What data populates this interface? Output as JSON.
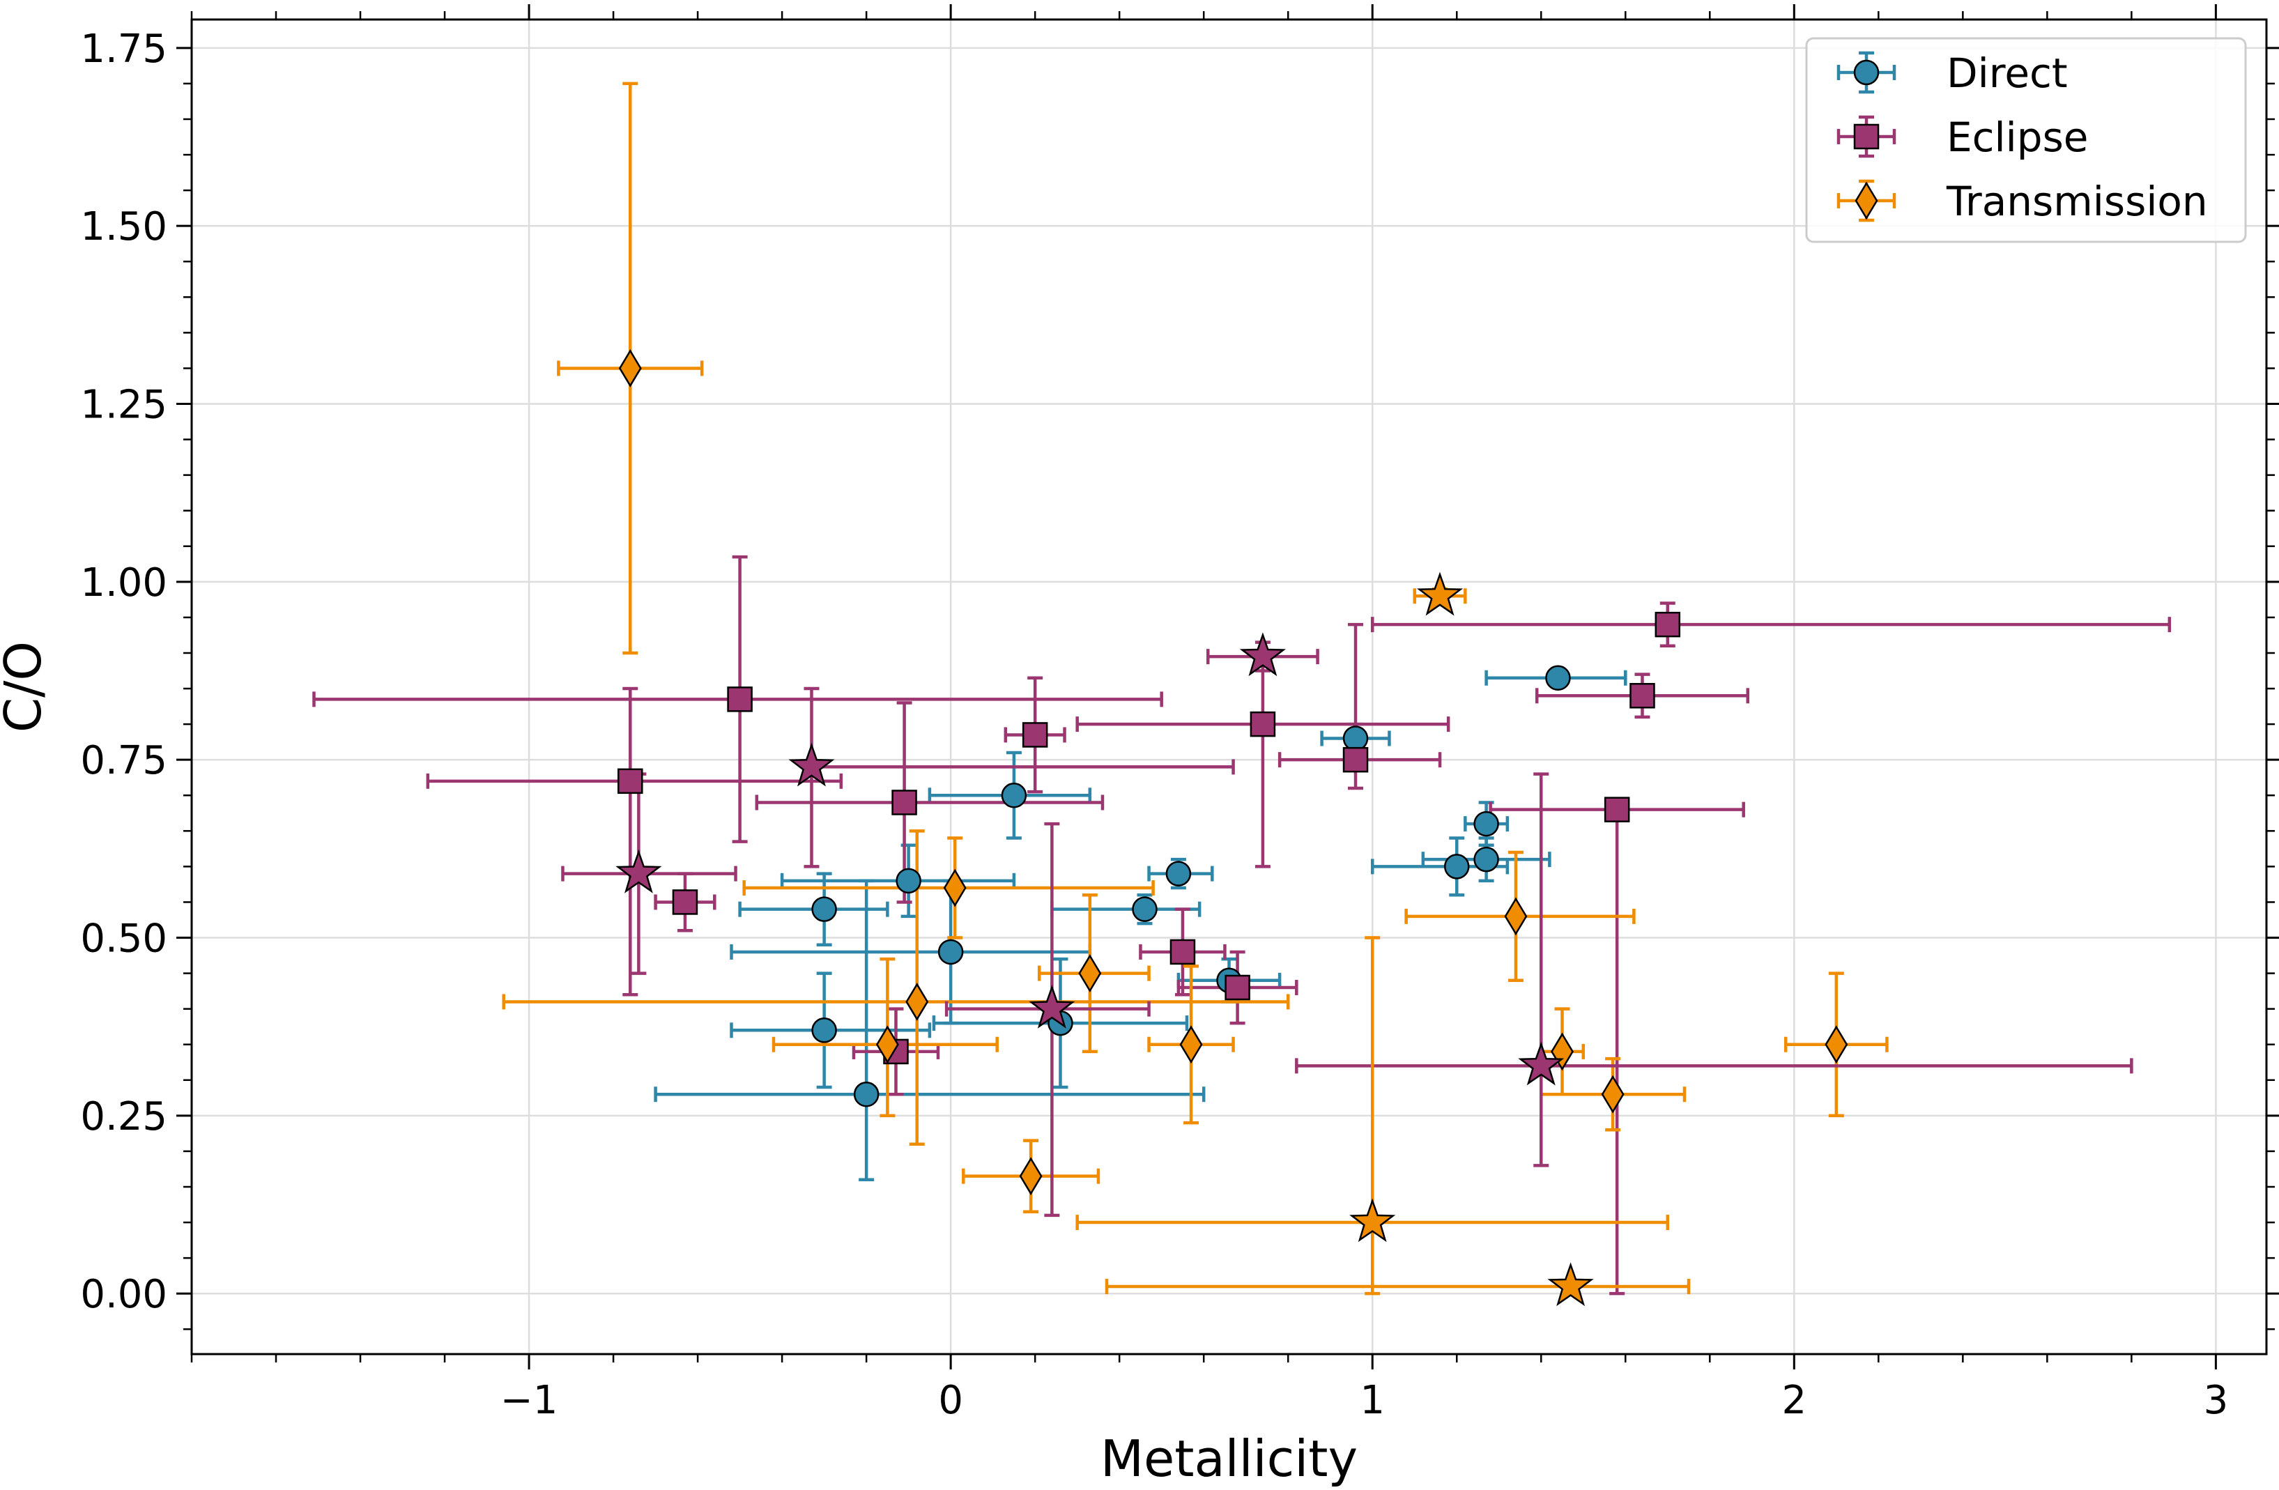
{
  "chart_data": {
    "type": "scatter",
    "title": "",
    "xlabel": "Metallicity",
    "ylabel": "C/O",
    "xlim": [
      -1.8,
      3.12
    ],
    "ylim": [
      -0.085,
      1.79
    ],
    "grid": true,
    "legend_position": "top-right",
    "xticks": [
      {
        "value": -1,
        "label": "−1"
      },
      {
        "value": 0,
        "label": "0"
      },
      {
        "value": 1,
        "label": "1"
      },
      {
        "value": 2,
        "label": "2"
      },
      {
        "value": 3,
        "label": "3"
      }
    ],
    "yticks": [
      {
        "value": 0.0,
        "label": "0.00"
      },
      {
        "value": 0.25,
        "label": "0.25"
      },
      {
        "value": 0.5,
        "label": "0.50"
      },
      {
        "value": 0.75,
        "label": "0.75"
      },
      {
        "value": 1.0,
        "label": "1.00"
      },
      {
        "value": 1.25,
        "label": "1.25"
      },
      {
        "value": 1.5,
        "label": "1.50"
      },
      {
        "value": 1.75,
        "label": "1.75"
      }
    ],
    "colors": {
      "direct": "#2e86a8",
      "eclipse": "#9b3670",
      "transmission": "#f08c00"
    },
    "series": [
      {
        "name": "Direct",
        "marker": "circle",
        "color_key": "direct",
        "points": [
          {
            "x": 0.15,
            "y": 0.7,
            "xerr": [
              0.2,
              0.18
            ],
            "yerr": [
              0.06,
              0.06
            ]
          },
          {
            "x": 0.54,
            "y": 0.59,
            "xerr": [
              0.07,
              0.08
            ],
            "yerr": [
              0.02,
              0.02
            ]
          },
          {
            "x": 0.46,
            "y": 0.54,
            "xerr": [
              0.22,
              0.13
            ],
            "yerr": [
              0.02,
              0.02
            ]
          },
          {
            "x": -0.1,
            "y": 0.58,
            "xerr": [
              0.3,
              0.25
            ],
            "yerr": [
              0.05,
              0.05
            ]
          },
          {
            "x": -0.3,
            "y": 0.54,
            "xerr": [
              0.2,
              0.15
            ],
            "yerr": [
              0.05,
              0.05
            ]
          },
          {
            "x": 0.0,
            "y": 0.48,
            "xerr": [
              0.52,
              0.33
            ],
            "yerr": [
              0.1,
              0.1
            ]
          },
          {
            "x": -0.3,
            "y": 0.37,
            "xerr": [
              0.22,
              0.25
            ],
            "yerr": [
              0.08,
              0.08
            ]
          },
          {
            "x": -0.2,
            "y": 0.28,
            "xerr": [
              0.5,
              0.8
            ],
            "yerr": [
              0.12,
              0.3
            ]
          },
          {
            "x": 0.26,
            "y": 0.38,
            "xerr": [
              0.3,
              0.3
            ],
            "yerr": [
              0.09,
              0.09
            ]
          },
          {
            "x": 0.66,
            "y": 0.44,
            "xerr": [
              0.12,
              0.12
            ],
            "yerr": [
              0.03,
              0.03
            ]
          },
          {
            "x": 0.96,
            "y": 0.78,
            "xerr": [
              0.08,
              0.08
            ],
            "yerr": [
              0.02,
              0.02
            ]
          },
          {
            "x": 1.44,
            "y": 0.865,
            "xerr": [
              0.17,
              0.16
            ],
            "yerr": [
              0.01,
              0.01
            ]
          },
          {
            "x": 1.27,
            "y": 0.66,
            "xerr": [
              0.05,
              0.05
            ],
            "yerr": [
              0.03,
              0.03
            ]
          },
          {
            "x": 1.2,
            "y": 0.6,
            "xerr": [
              0.2,
              0.12
            ],
            "yerr": [
              0.04,
              0.04
            ]
          },
          {
            "x": 1.27,
            "y": 0.61,
            "xerr": [
              0.15,
              0.15
            ],
            "yerr": [
              0.03,
              0.03
            ]
          }
        ]
      },
      {
        "name": "Eclipse",
        "marker": "square",
        "color_key": "eclipse",
        "points": [
          {
            "x": -0.5,
            "y": 0.835,
            "xerr": [
              1.01,
              1.0
            ],
            "yerr": [
              0.2,
              0.2
            ]
          },
          {
            "x": -0.76,
            "y": 0.72,
            "xerr": [
              0.48,
              0.5
            ],
            "yerr": [
              0.3,
              0.13
            ]
          },
          {
            "x": -0.63,
            "y": 0.55,
            "xerr": [
              0.07,
              0.07
            ],
            "yerr": [
              0.04,
              0.04
            ]
          },
          {
            "x": -0.11,
            "y": 0.69,
            "xerr": [
              0.35,
              0.47
            ],
            "yerr": [
              0.14,
              0.14
            ]
          },
          {
            "x": 0.2,
            "y": 0.785,
            "xerr": [
              0.07,
              0.07
            ],
            "yerr": [
              0.08,
              0.08
            ]
          },
          {
            "x": 0.74,
            "y": 0.8,
            "xerr": [
              0.44,
              0.44
            ],
            "yerr": [
              0.2,
              0.1
            ]
          },
          {
            "x": 0.96,
            "y": 0.75,
            "xerr": [
              0.18,
              0.2
            ],
            "yerr": [
              0.04,
              0.19
            ]
          },
          {
            "x": 1.7,
            "y": 0.94,
            "xerr": [
              0.7,
              1.19
            ],
            "yerr": [
              0.03,
              0.03
            ]
          },
          {
            "x": 1.64,
            "y": 0.84,
            "xerr": [
              0.25,
              0.25
            ],
            "yerr": [
              0.03,
              0.03
            ]
          },
          {
            "x": 1.58,
            "y": 0.68,
            "xerr": [
              0.3,
              0.3
            ],
            "yerr": [
              0.68,
              0.0
            ]
          },
          {
            "x": 0.55,
            "y": 0.48,
            "xerr": [
              0.1,
              0.1
            ],
            "yerr": [
              0.06,
              0.06
            ]
          },
          {
            "x": 0.68,
            "y": 0.43,
            "xerr": [
              0.14,
              0.14
            ],
            "yerr": [
              0.05,
              0.05
            ]
          },
          {
            "x": -0.13,
            "y": 0.34,
            "xerr": [
              0.1,
              0.1
            ],
            "yerr": [
              0.06,
              0.06
            ]
          }
        ]
      },
      {
        "name": "Transmission",
        "marker": "diamond",
        "color_key": "transmission",
        "points": [
          {
            "x": -0.76,
            "y": 1.3,
            "xerr": [
              0.17,
              0.17
            ],
            "yerr": [
              0.4,
              0.4
            ]
          },
          {
            "x": 0.01,
            "y": 0.57,
            "xerr": [
              0.5,
              0.47
            ],
            "yerr": [
              0.07,
              0.07
            ]
          },
          {
            "x": -0.08,
            "y": 0.41,
            "xerr": [
              0.98,
              0.88
            ],
            "yerr": [
              0.2,
              0.24
            ]
          },
          {
            "x": -0.15,
            "y": 0.35,
            "xerr": [
              0.27,
              0.26
            ],
            "yerr": [
              0.1,
              0.12
            ]
          },
          {
            "x": 0.33,
            "y": 0.45,
            "xerr": [
              0.12,
              0.14
            ],
            "yerr": [
              0.11,
              0.11
            ]
          },
          {
            "x": 0.57,
            "y": 0.35,
            "xerr": [
              0.1,
              0.1
            ],
            "yerr": [
              0.11,
              0.11
            ]
          },
          {
            "x": 0.19,
            "y": 0.165,
            "xerr": [
              0.16,
              0.16
            ],
            "yerr": [
              0.05,
              0.05
            ]
          },
          {
            "x": 1.34,
            "y": 0.53,
            "xerr": [
              0.26,
              0.28
            ],
            "yerr": [
              0.09,
              0.09
            ]
          },
          {
            "x": 1.45,
            "y": 0.34,
            "xerr": [
              0.05,
              0.05
            ],
            "yerr": [
              0.06,
              0.06
            ]
          },
          {
            "x": 1.57,
            "y": 0.28,
            "xerr": [
              0.17,
              0.17
            ],
            "yerr": [
              0.05,
              0.05
            ]
          },
          {
            "x": 2.1,
            "y": 0.35,
            "xerr": [
              0.12,
              0.12
            ],
            "yerr": [
              0.1,
              0.1
            ]
          }
        ]
      }
    ],
    "star_points": [
      {
        "color_key": "eclipse",
        "x": -0.33,
        "y": 0.74,
        "xerr": [
          0.0,
          1.0
        ],
        "yerr": [
          0.14,
          0.11
        ]
      },
      {
        "color_key": "eclipse",
        "x": -0.74,
        "y": 0.59,
        "xerr": [
          0.18,
          0.23
        ],
        "yerr": [
          0.14,
          0.14
        ]
      },
      {
        "color_key": "eclipse",
        "x": 0.74,
        "y": 0.895,
        "xerr": [
          0.13,
          0.13
        ],
        "yerr": [
          0.02,
          0.02
        ]
      },
      {
        "color_key": "eclipse",
        "x": 0.24,
        "y": 0.4,
        "xerr": [
          0.25,
          0.23
        ],
        "yerr": [
          0.29,
          0.26
        ]
      },
      {
        "color_key": "eclipse",
        "x": 1.4,
        "y": 0.32,
        "xerr": [
          0.58,
          1.4
        ],
        "yerr": [
          0.14,
          0.41
        ]
      },
      {
        "color_key": "transmission",
        "x": 1.16,
        "y": 0.98,
        "xerr": [
          0.06,
          0.06
        ],
        "yerr": [
          0.01,
          0.01
        ]
      },
      {
        "color_key": "transmission",
        "x": 1.0,
        "y": 0.1,
        "xerr": [
          0.7,
          0.7
        ],
        "yerr": [
          0.1,
          0.4
        ]
      },
      {
        "color_key": "transmission",
        "x": 1.47,
        "y": 0.01,
        "xerr": [
          1.1,
          0.28
        ],
        "yerr": [
          0.0,
          0.0
        ]
      }
    ]
  }
}
